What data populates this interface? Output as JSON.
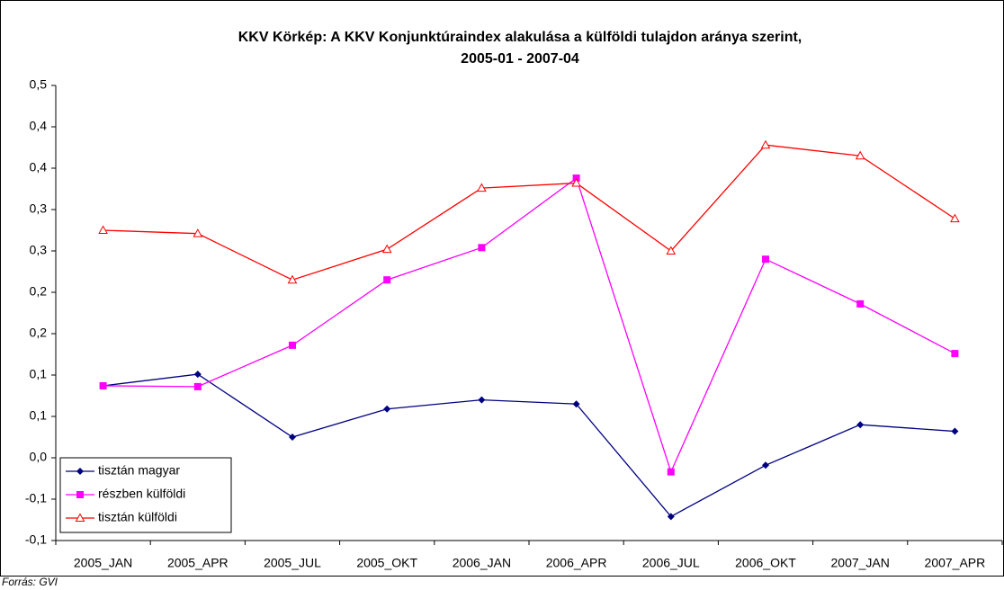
{
  "chart_data": {
    "type": "line",
    "title": [
      "KKV Körkép: A KKV Konjunktúraindex alakulása a külföldi tulajdon aránya szerint,",
      "2005-01 - 2007-04"
    ],
    "source": "Forrás: GVI",
    "categories": [
      "2005_JAN",
      "2005_APR",
      "2005_JUL",
      "2005_OKT",
      "2006_JAN",
      "2006_APR",
      "2006_JUL",
      "2006_OKT",
      "2007_JAN",
      "2007_APR"
    ],
    "series": [
      {
        "name": "tisztán magyar",
        "color": "#000080",
        "marker": "diamond",
        "values": [
          0.087,
          0.101,
          0.025,
          0.059,
          0.07,
          0.065,
          -0.071,
          -0.009,
          0.04,
          0.032
        ]
      },
      {
        "name": "részben külföldi",
        "color": "#ff00ff",
        "marker": "square",
        "values": [
          0.087,
          0.086,
          0.136,
          0.215,
          0.254,
          0.338,
          -0.017,
          0.24,
          0.186,
          0.126
        ]
      },
      {
        "name": "tisztán külföldi",
        "color": "#ff0000",
        "marker": "triangle",
        "values": [
          0.275,
          0.271,
          0.215,
          0.252,
          0.326,
          0.332,
          0.25,
          0.378,
          0.365,
          0.289
        ]
      }
    ],
    "ylim": [
      -0.1,
      0.45
    ],
    "yticks": [
      {
        "value": -0.1,
        "label": "-0,1"
      },
      {
        "value": -0.05,
        "label": "-0,1"
      },
      {
        "value": 0,
        "label": "0,0"
      },
      {
        "value": 0.05,
        "label": "0,1"
      },
      {
        "value": 0.1,
        "label": "0,1"
      },
      {
        "value": 0.15,
        "label": "0,2"
      },
      {
        "value": 0.2,
        "label": "0,2"
      },
      {
        "value": 0.25,
        "label": "0,3"
      },
      {
        "value": 0.3,
        "label": "0,3"
      },
      {
        "value": 0.35,
        "label": "0,4"
      },
      {
        "value": 0.4,
        "label": "0,4"
      },
      {
        "value": 0.45,
        "label": "0,5"
      }
    ],
    "legend": "lower left"
  }
}
